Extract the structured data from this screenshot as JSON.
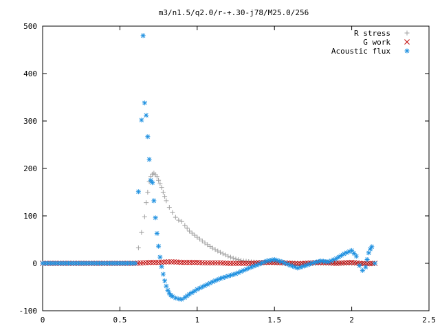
{
  "chart_data": {
    "type": "scatter",
    "title": "m3/n1.5/q2.0/r-+.30-j78/M25.0/256",
    "xlabel": "",
    "ylabel": "",
    "xlim": [
      0,
      2.5
    ],
    "ylim": [
      -100,
      500
    ],
    "x_ticks": [
      "0",
      "0.5",
      "1",
      "1.5",
      "2",
      "2.5"
    ],
    "y_ticks": [
      "-100",
      "0",
      "100",
      "200",
      "300",
      "400",
      "500"
    ],
    "legend_position": "top-right",
    "grid": false,
    "series": [
      {
        "name": "R stress",
        "marker": "plus",
        "color": "#a0a0a0",
        "points": [
          [
            0.0,
            0
          ],
          [
            0.05,
            0
          ],
          [
            0.1,
            0
          ],
          [
            0.15,
            0
          ],
          [
            0.2,
            0
          ],
          [
            0.25,
            0
          ],
          [
            0.3,
            0
          ],
          [
            0.35,
            0
          ],
          [
            0.4,
            0
          ],
          [
            0.45,
            0
          ],
          [
            0.5,
            0
          ],
          [
            0.55,
            0
          ],
          [
            0.6,
            0
          ],
          [
            0.64,
            65
          ],
          [
            0.66,
            98
          ],
          [
            0.67,
            128
          ],
          [
            0.68,
            150
          ],
          [
            0.69,
            172
          ],
          [
            0.7,
            183
          ],
          [
            0.71,
            188
          ],
          [
            0.72,
            190
          ],
          [
            0.73,
            187
          ],
          [
            0.74,
            183
          ],
          [
            0.75,
            175
          ],
          [
            0.76,
            168
          ],
          [
            0.77,
            160
          ],
          [
            0.78,
            150
          ],
          [
            0.79,
            141
          ],
          [
            0.8,
            132
          ],
          [
            0.82,
            118
          ],
          [
            0.84,
            107
          ],
          [
            0.86,
            97
          ],
          [
            0.88,
            91
          ],
          [
            0.9,
            88
          ],
          [
            0.92,
            80
          ],
          [
            0.95,
            68
          ],
          [
            1.0,
            55
          ],
          [
            1.05,
            43
          ],
          [
            1.1,
            32
          ],
          [
            1.15,
            23
          ],
          [
            1.2,
            15
          ],
          [
            1.25,
            9
          ],
          [
            1.3,
            5
          ],
          [
            1.35,
            3
          ],
          [
            1.4,
            2
          ],
          [
            1.5,
            1
          ],
          [
            1.6,
            1
          ],
          [
            1.7,
            0
          ],
          [
            1.8,
            0
          ],
          [
            1.9,
            0
          ],
          [
            2.0,
            0
          ],
          [
            2.1,
            0
          ],
          [
            2.15,
            0
          ]
        ]
      },
      {
        "name": "G work",
        "marker": "cross",
        "color": "#c00000",
        "points": [
          [
            0.0,
            0
          ],
          [
            0.05,
            0
          ],
          [
            0.1,
            0
          ],
          [
            0.15,
            0
          ],
          [
            0.2,
            0
          ],
          [
            0.25,
            0
          ],
          [
            0.3,
            0
          ],
          [
            0.35,
            0
          ],
          [
            0.4,
            0
          ],
          [
            0.45,
            0
          ],
          [
            0.5,
            0
          ],
          [
            0.55,
            0
          ],
          [
            0.6,
            0
          ],
          [
            0.65,
            1
          ],
          [
            0.7,
            2
          ],
          [
            0.75,
            2
          ],
          [
            0.8,
            3
          ],
          [
            0.85,
            3
          ],
          [
            0.9,
            2
          ],
          [
            0.95,
            2
          ],
          [
            1.0,
            2
          ],
          [
            1.05,
            1
          ],
          [
            1.1,
            1
          ],
          [
            1.15,
            1
          ],
          [
            1.2,
            0
          ],
          [
            1.25,
            0
          ],
          [
            1.3,
            0
          ],
          [
            1.35,
            0
          ],
          [
            1.4,
            1
          ],
          [
            1.45,
            2
          ],
          [
            1.5,
            2
          ],
          [
            1.55,
            1
          ],
          [
            1.6,
            0
          ],
          [
            1.65,
            -1
          ],
          [
            1.7,
            0
          ],
          [
            1.75,
            1
          ],
          [
            1.8,
            2
          ],
          [
            1.85,
            1
          ],
          [
            1.9,
            0
          ],
          [
            1.95,
            1
          ],
          [
            2.0,
            2
          ],
          [
            2.05,
            0
          ],
          [
            2.1,
            -1
          ],
          [
            2.15,
            0
          ]
        ]
      },
      {
        "name": "Acoustic flux",
        "marker": "star",
        "color": "#1e90e0",
        "points": [
          [
            0.0,
            0
          ],
          [
            0.05,
            0
          ],
          [
            0.1,
            0
          ],
          [
            0.15,
            0
          ],
          [
            0.2,
            0
          ],
          [
            0.25,
            0
          ],
          [
            0.3,
            0
          ],
          [
            0.35,
            0
          ],
          [
            0.4,
            0
          ],
          [
            0.45,
            0
          ],
          [
            0.5,
            0
          ],
          [
            0.55,
            0
          ],
          [
            0.6,
            0
          ],
          [
            0.64,
            302
          ],
          [
            0.65,
            480
          ],
          [
            0.66,
            338
          ],
          [
            0.67,
            312
          ],
          [
            0.68,
            267
          ],
          [
            0.69,
            219
          ],
          [
            0.7,
            175
          ],
          [
            0.71,
            170
          ],
          [
            0.72,
            132
          ],
          [
            0.73,
            96
          ],
          [
            0.74,
            63
          ],
          [
            0.75,
            36
          ],
          [
            0.76,
            13
          ],
          [
            0.77,
            -7
          ],
          [
            0.78,
            -23
          ],
          [
            0.79,
            -37
          ],
          [
            0.8,
            -48
          ],
          [
            0.81,
            -57
          ],
          [
            0.82,
            -63
          ],
          [
            0.83,
            -67
          ],
          [
            0.84,
            -70
          ],
          [
            0.86,
            -73
          ],
          [
            0.88,
            -75
          ],
          [
            0.9,
            -76
          ],
          [
            0.92,
            -72
          ],
          [
            0.95,
            -65
          ],
          [
            1.0,
            -55
          ],
          [
            1.05,
            -47
          ],
          [
            1.1,
            -39
          ],
          [
            1.15,
            -32
          ],
          [
            1.2,
            -27
          ],
          [
            1.25,
            -22
          ],
          [
            1.3,
            -15
          ],
          [
            1.35,
            -8
          ],
          [
            1.4,
            -2
          ],
          [
            1.45,
            5
          ],
          [
            1.5,
            8
          ],
          [
            1.55,
            3
          ],
          [
            1.6,
            -4
          ],
          [
            1.65,
            -10
          ],
          [
            1.7,
            -5
          ],
          [
            1.75,
            1
          ],
          [
            1.8,
            5
          ],
          [
            1.85,
            3
          ],
          [
            1.9,
            10
          ],
          [
            1.95,
            20
          ],
          [
            2.0,
            27
          ],
          [
            2.03,
            15
          ],
          [
            2.05,
            -5
          ],
          [
            2.07,
            -15
          ],
          [
            2.09,
            -8
          ],
          [
            2.1,
            8
          ],
          [
            2.11,
            22
          ],
          [
            2.12,
            30
          ],
          [
            2.13,
            35
          ],
          [
            2.15,
            0
          ]
        ]
      }
    ]
  }
}
